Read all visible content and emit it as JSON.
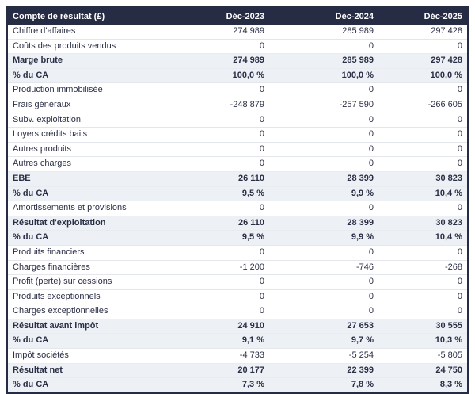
{
  "chart_data": {
    "type": "table",
    "title": "Compte de résultat (£)",
    "header": {
      "label": "Compte de résultat (£)",
      "columns": [
        "Déc-2023",
        "Déc-2024",
        "Déc-2025"
      ]
    },
    "rows": [
      {
        "label": "Chiffre d'affaires",
        "values": [
          "274 989",
          "285 989",
          "297 428"
        ],
        "style": "normal"
      },
      {
        "label": "Coûts des produits vendus",
        "values": [
          "0",
          "0",
          "0"
        ],
        "style": "normal"
      },
      {
        "label": "Marge brute",
        "values": [
          "274 989",
          "285 989",
          "297 428"
        ],
        "style": "highlight"
      },
      {
        "label": "% du CA",
        "values": [
          "100,0 %",
          "100,0 %",
          "100,0 %"
        ],
        "style": "highlight"
      },
      {
        "label": "Production immobilisée",
        "values": [
          "0",
          "0",
          "0"
        ],
        "style": "normal"
      },
      {
        "label": "Frais généraux",
        "values": [
          "-248 879",
          "-257 590",
          "-266 605"
        ],
        "style": "normal"
      },
      {
        "label": "Subv. exploitation",
        "values": [
          "0",
          "0",
          "0"
        ],
        "style": "normal"
      },
      {
        "label": "Loyers crédits bails",
        "values": [
          "0",
          "0",
          "0"
        ],
        "style": "normal"
      },
      {
        "label": "Autres produits",
        "values": [
          "0",
          "0",
          "0"
        ],
        "style": "normal"
      },
      {
        "label": "Autres charges",
        "values": [
          "0",
          "0",
          "0"
        ],
        "style": "normal"
      },
      {
        "label": "EBE",
        "values": [
          "26 110",
          "28 399",
          "30 823"
        ],
        "style": "highlight"
      },
      {
        "label": "% du CA",
        "values": [
          "9,5 %",
          "9,9 %",
          "10,4 %"
        ],
        "style": "highlight"
      },
      {
        "label": "Amortissements et provisions",
        "values": [
          "0",
          "0",
          "0"
        ],
        "style": "normal"
      },
      {
        "label": "Résultat d'exploitation",
        "values": [
          "26 110",
          "28 399",
          "30 823"
        ],
        "style": "highlight"
      },
      {
        "label": "% du CA",
        "values": [
          "9,5 %",
          "9,9 %",
          "10,4 %"
        ],
        "style": "highlight"
      },
      {
        "label": "Produits financiers",
        "values": [
          "0",
          "0",
          "0"
        ],
        "style": "normal"
      },
      {
        "label": "Charges financières",
        "values": [
          "-1 200",
          "-746",
          "-268"
        ],
        "style": "normal"
      },
      {
        "label": "Profit (perte) sur cessions",
        "values": [
          "0",
          "0",
          "0"
        ],
        "style": "normal"
      },
      {
        "label": "Produits exceptionnels",
        "values": [
          "0",
          "0",
          "0"
        ],
        "style": "normal"
      },
      {
        "label": "Charges exceptionnelles",
        "values": [
          "0",
          "0",
          "0"
        ],
        "style": "normal"
      },
      {
        "label": "Résultat avant impôt",
        "values": [
          "24 910",
          "27 653",
          "30 555"
        ],
        "style": "highlight"
      },
      {
        "label": "% du CA",
        "values": [
          "9,1 %",
          "9,7 %",
          "10,3 %"
        ],
        "style": "highlight"
      },
      {
        "label": "Impôt sociétés",
        "values": [
          "-4 733",
          "-5 254",
          "-5 805"
        ],
        "style": "normal"
      },
      {
        "label": "Résultat net",
        "values": [
          "20 177",
          "22 399",
          "24 750"
        ],
        "style": "highlight"
      },
      {
        "label": "% du CA",
        "values": [
          "7,3 %",
          "7,8 %",
          "8,3 %"
        ],
        "style": "highlight"
      }
    ],
    "colors": {
      "header_bg": "#272c45",
      "header_text": "#ffffff",
      "highlight_bg": "#edf1f5",
      "row_border": "#e3e7eb",
      "text": "#2a2f45",
      "outer_border": "#272c45"
    }
  }
}
